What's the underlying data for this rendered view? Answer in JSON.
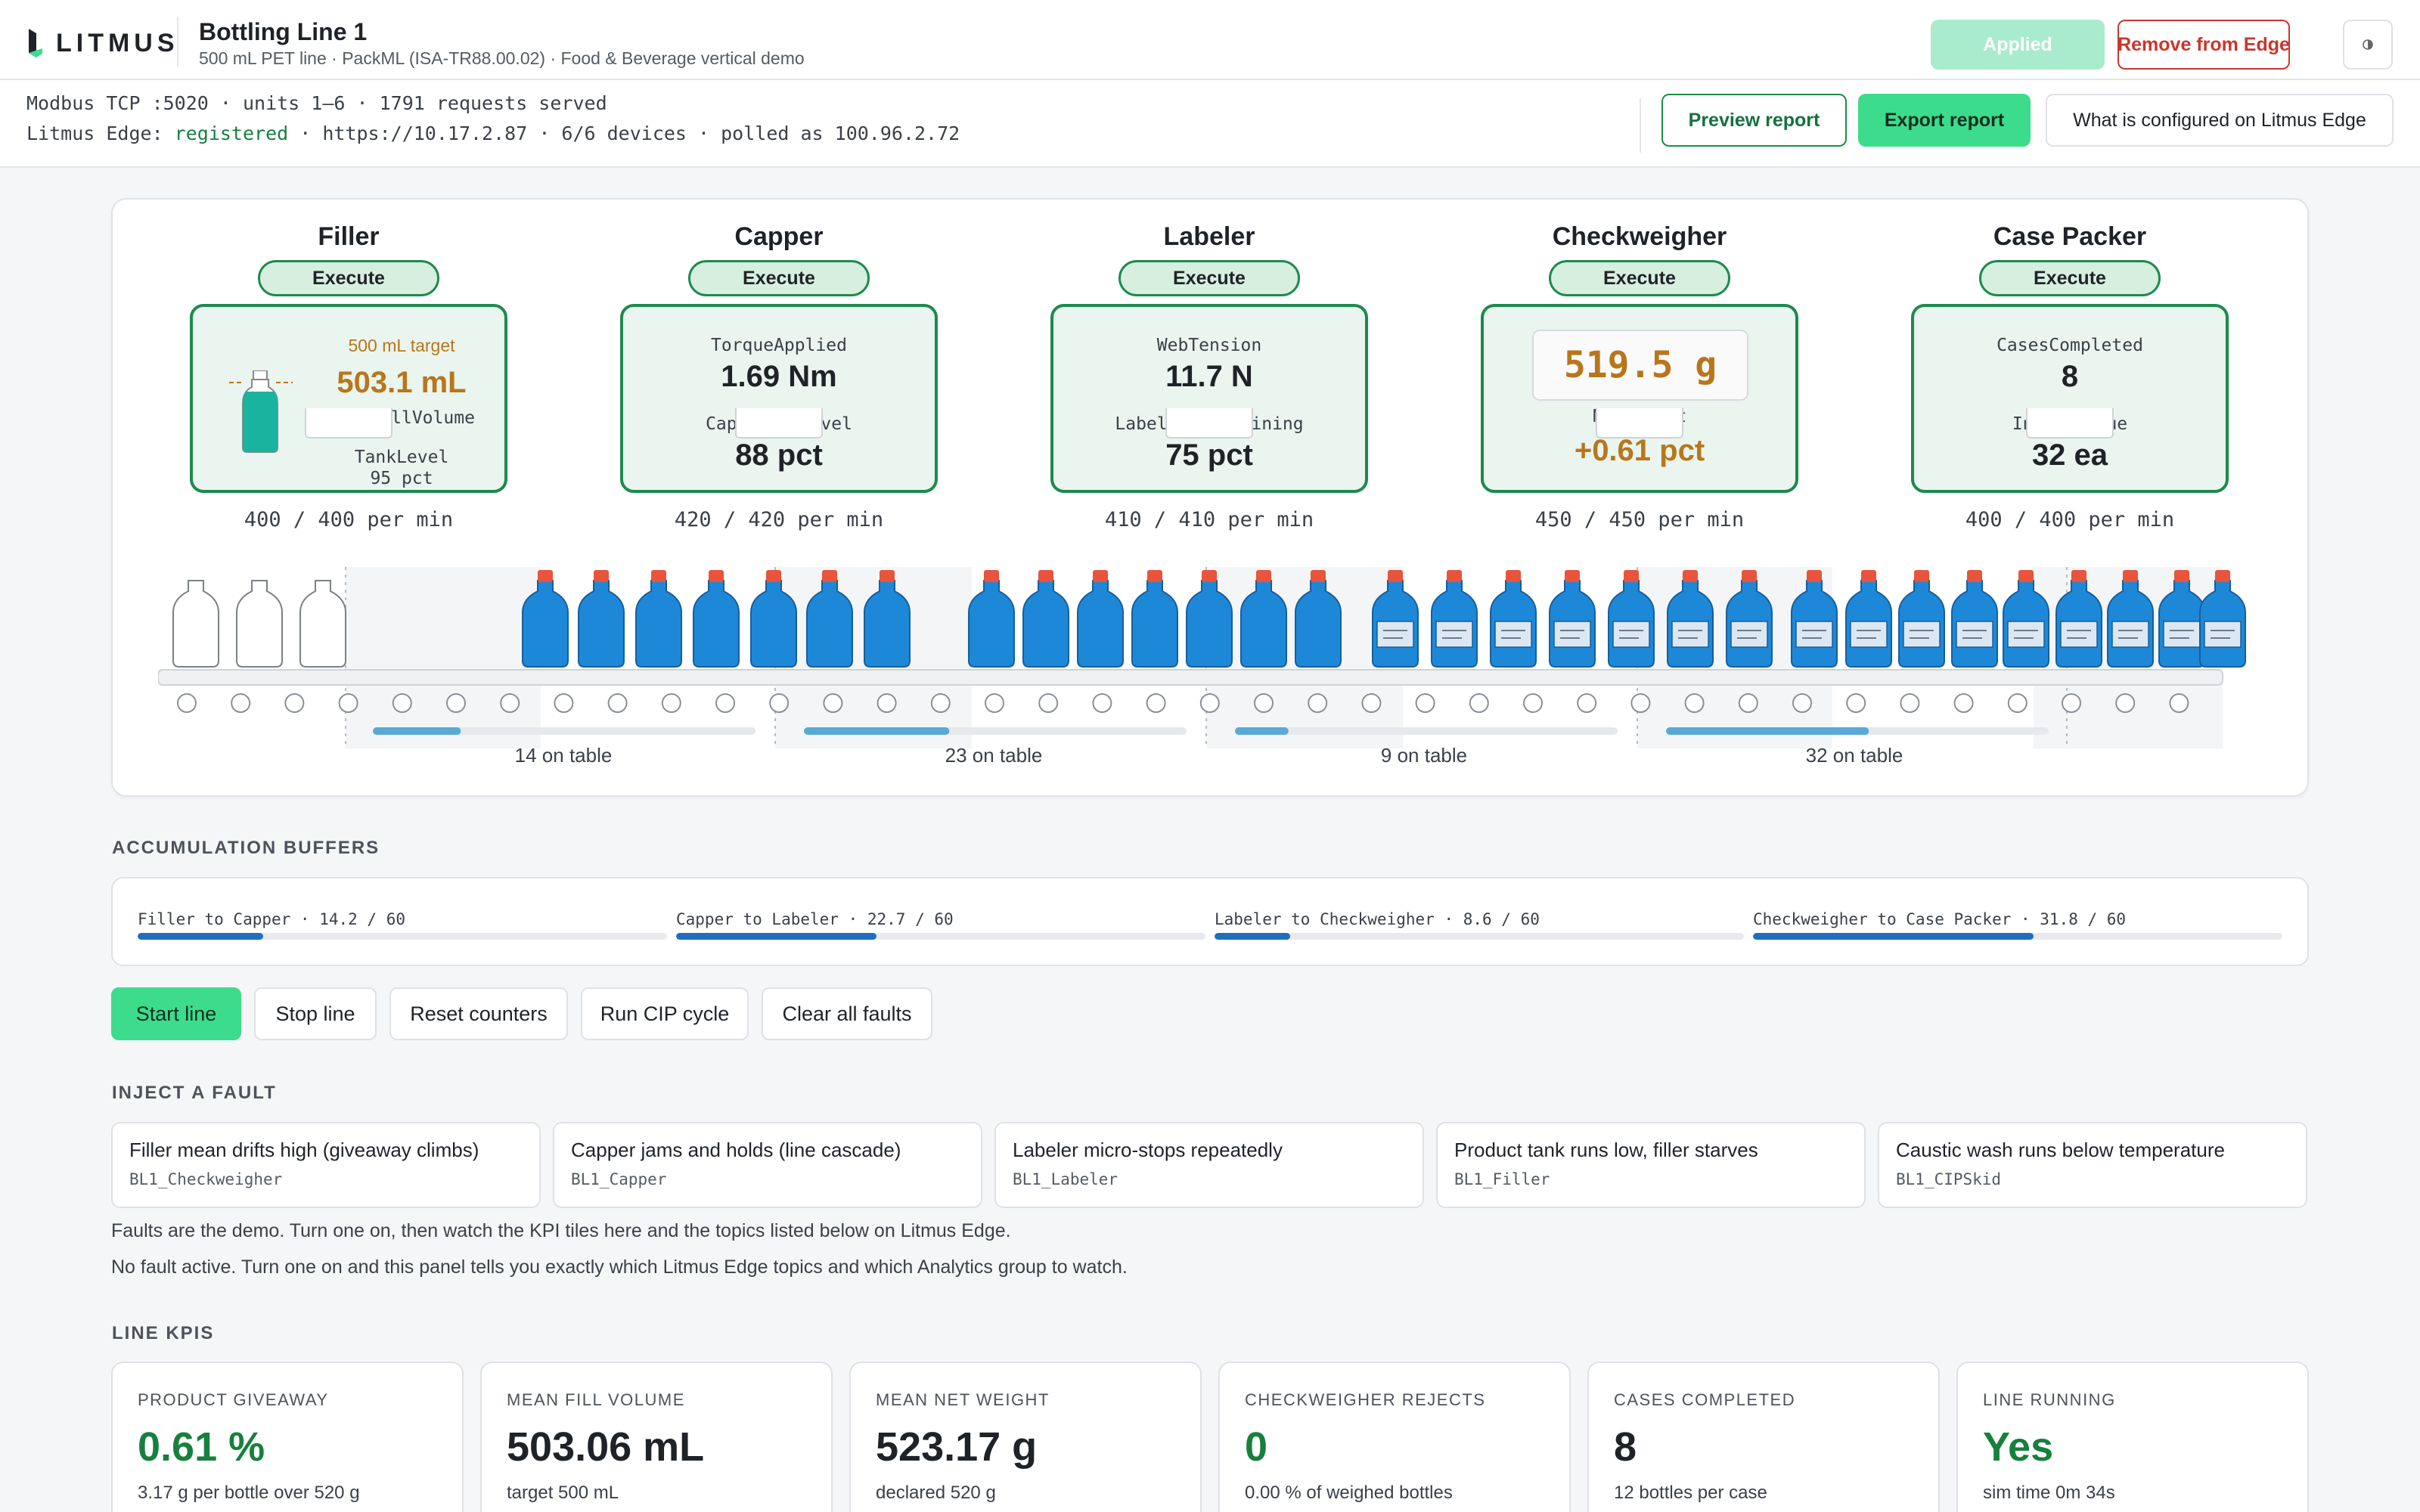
{
  "header": {
    "logo_text": "LITMUS",
    "title": "Bottling Line 1",
    "subtitle": "500 mL PET line · PackML (ISA-TR88.00.02) · Food & Beverage vertical demo",
    "applied_label": "Applied",
    "remove_label": "Remove from Edge",
    "theme_icon": "half-moon-icon"
  },
  "status": {
    "modbus_line": "Modbus TCP :5020 · units 1–6 · 1791 requests served",
    "edge_prefix": "Litmus Edge: ",
    "edge_state": "registered",
    "edge_suffix": " · https://10.17.2.87 · 6/6 devices · polled as 100.96.2.72",
    "preview_label": "Preview report",
    "export_label": "Export report",
    "configured_label": "What is configured on Litmus Edge"
  },
  "stations": [
    {
      "name": "Filler",
      "state": "Execute",
      "target": "500 mL target",
      "value1": "503.1 mL",
      "label1": "MeanFillVolume",
      "label2": "TankLevel",
      "value2": "95 pct",
      "rate": "400 / 400 per min",
      "tank_level": 0.95
    },
    {
      "name": "Capper",
      "state": "Execute",
      "label1": "TorqueApplied",
      "value1": "1.69 Nm",
      "label2": "CapHopperLevel",
      "value2": "88 pct",
      "rate": "420 / 420 per min"
    },
    {
      "name": "Labeler",
      "state": "Execute",
      "label1": "WebTension",
      "value1": "11.7 N",
      "label2": "LabelRollRemaining",
      "value2": "75 pct",
      "rate": "410 / 410 per min"
    },
    {
      "name": "Checkweigher",
      "state": "Execute",
      "display": "519.5 g",
      "label1": "NetWeight",
      "value1": "+0.61 pct",
      "rate": "450 / 450 per min"
    },
    {
      "name": "Case Packer",
      "state": "Execute",
      "label1": "CasesCompleted",
      "value1": "8",
      "label2": "InfeedQueue",
      "value2": "32 ea",
      "rate": "400 / 400 per min"
    }
  ],
  "conveyor": {
    "tables": [
      {
        "label": "14 on table",
        "fill": 0.23
      },
      {
        "label": "23 on table",
        "fill": 0.38
      },
      {
        "label": "9 on table",
        "fill": 0.14
      },
      {
        "label": "32 on table",
        "fill": 0.53
      }
    ],
    "colors": {
      "empty": "#ffffff",
      "filled": "#1e88d8",
      "cap": "#e8543c",
      "label": "#dde7f2"
    }
  },
  "buffers": {
    "title": "ACCUMULATION BUFFERS",
    "items": [
      {
        "label": "Filler to Capper · 14.2 / 60",
        "fill": 0.237
      },
      {
        "label": "Capper to Labeler · 22.7 / 60",
        "fill": 0.378
      },
      {
        "label": "Labeler to Checkweigher · 8.6 / 60",
        "fill": 0.143
      },
      {
        "label": "Checkweigher to Case Packer · 31.8 / 60",
        "fill": 0.53
      }
    ]
  },
  "controls": {
    "start": "Start line",
    "stop": "Stop line",
    "reset": "Reset counters",
    "cip": "Run CIP cycle",
    "clear": "Clear all faults"
  },
  "faults": {
    "title": "INJECT A FAULT",
    "items": [
      {
        "title": "Filler mean drifts high (giveaway climbs)",
        "tag": "BL1_Checkweigher"
      },
      {
        "title": "Capper jams and holds (line cascade)",
        "tag": "BL1_Capper"
      },
      {
        "title": "Labeler micro-stops repeatedly",
        "tag": "BL1_Labeler"
      },
      {
        "title": "Product tank runs low, filler starves",
        "tag": "BL1_Filler"
      },
      {
        "title": "Caustic wash runs below temperature",
        "tag": "BL1_CIPSkid"
      }
    ],
    "note1": "Faults are the demo. Turn one on, then watch the KPI tiles here and the topics listed below on Litmus Edge.",
    "note2": "No fault active. Turn one on and this panel tells you exactly which Litmus Edge topics and which Analytics group to watch."
  },
  "kpis": {
    "title": "LINE KPIS",
    "items": [
      {
        "label": "PRODUCT GIVEAWAY",
        "value": "0.61 %",
        "sub": "3.17 g per bottle over 520 g",
        "green": true
      },
      {
        "label": "MEAN FILL VOLUME",
        "value": "503.06 mL",
        "sub": "target 500 mL",
        "green": false
      },
      {
        "label": "MEAN NET WEIGHT",
        "value": "523.17 g",
        "sub": "declared 520 g",
        "green": false
      },
      {
        "label": "CHECKWEIGHER REJECTS",
        "value": "0",
        "sub": "0.00 % of weighed bottles",
        "green": true
      },
      {
        "label": "CASES COMPLETED",
        "value": "8",
        "sub": "12 bottles per case",
        "green": false
      },
      {
        "label": "LINE RUNNING",
        "value": "Yes",
        "sub": "sim time 0m 34s",
        "green": true
      }
    ]
  },
  "colors": {
    "accent_green": "#3ddc8d",
    "state_green": "#1d8a4e",
    "danger": "#c8372d",
    "orange": "#b8761b",
    "blue": "#1f6fbf"
  }
}
